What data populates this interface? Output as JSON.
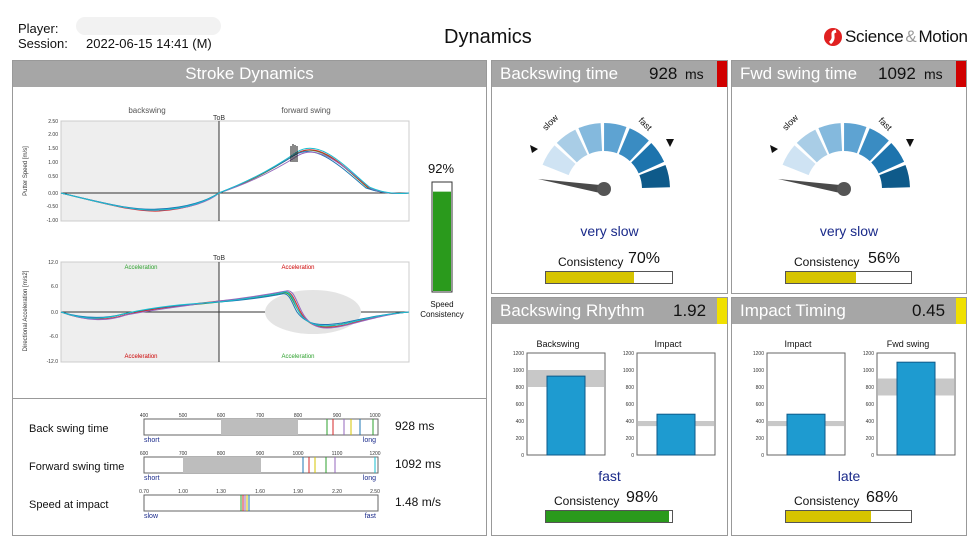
{
  "header": {
    "player_label": "Player:",
    "session_label": "Session:",
    "session_value": "2022-06-15 14:41 (M)",
    "page_title": "Dynamics",
    "brand_a": "Science",
    "brand_amp": "&",
    "brand_b": "Motion"
  },
  "stroke": {
    "title": "Stroke Dynamics",
    "backswing_label": "backswing",
    "forward_label": "forward swing",
    "tob": "ToB",
    "speed_ylabel": "Putter Speed [m/s]",
    "acc_ylabel": "Directional Acceleration [m/s2]",
    "speed_ticks": [
      "2.50",
      "2.00",
      "1.50",
      "1.00",
      "0.50",
      "0.00",
      "-0.50",
      "-1.00"
    ],
    "acc_ticks": [
      "12.0",
      "6.0",
      "0.0",
      "-6.0",
      "-12.0"
    ],
    "acceleration": "Acceleration",
    "consistency_pct": "92%",
    "consistency_fraction": 0.92,
    "consistency_line1": "Speed",
    "consistency_line2": "Consistency"
  },
  "ranges": [
    {
      "label": "Back swing time",
      "value": "928 ms",
      "ticks": [
        "400",
        "500",
        "600",
        "700",
        "800",
        "900",
        "1000"
      ],
      "low": "short",
      "high": "long"
    },
    {
      "label": "Forward swing time",
      "value": "1092 ms",
      "ticks": [
        "600",
        "700",
        "800",
        "900",
        "1000",
        "1100",
        "1200"
      ],
      "low": "short",
      "high": "long"
    },
    {
      "label": "Speed at impact",
      "value": "1.48 m/s",
      "ticks": [
        "0.70",
        "1.00",
        "1.30",
        "1.60",
        "1.90",
        "2.20",
        "2.50"
      ],
      "low": "slow",
      "high": "fast"
    }
  ],
  "backswing_time": {
    "title": "Backswing time",
    "value": "928",
    "unit": "ms",
    "flag_color": "#d00000",
    "slow": "slow",
    "fast": "fast",
    "verdict": "very slow",
    "consistency_label": "Consistency",
    "consistency": "70%",
    "consistency_fraction": 0.7,
    "bar_color": "#d6c400"
  },
  "fwd_swing_time": {
    "title": "Fwd swing time",
    "value": "1092",
    "unit": "ms",
    "flag_color": "#d00000",
    "slow": "slow",
    "fast": "fast",
    "verdict": "very slow",
    "consistency_label": "Consistency",
    "consistency": "56%",
    "consistency_fraction": 0.56,
    "bar_color": "#d6c400"
  },
  "backswing_rhythm": {
    "title": "Backswing Rhythm",
    "value": "1.92",
    "flag_color": "#f0e000",
    "bar1": "Backswing",
    "bar2": "Impact",
    "ticks": [
      "1200",
      "1000",
      "800",
      "600",
      "400",
      "200",
      "0"
    ],
    "bar1_value": 928,
    "bar2_value": 480,
    "verdict": "fast",
    "consistency_label": "Consistency",
    "consistency": "98%",
    "consistency_fraction": 0.98,
    "bar_color": "#2a9a1c"
  },
  "impact_timing": {
    "title": "Impact Timing",
    "value": "0.45",
    "flag_color": "#f0e000",
    "bar1": "Impact",
    "bar2": "Fwd swing",
    "ticks": [
      "1200",
      "1000",
      "800",
      "600",
      "400",
      "200",
      "0"
    ],
    "bar1_value": 480,
    "bar2_value": 1092,
    "verdict": "late",
    "consistency_label": "Consistency",
    "consistency": "68%",
    "consistency_fraction": 0.68,
    "bar_color": "#d6c400"
  },
  "colors": {
    "gauge_dark": "#0e5a8a",
    "gauge_light": "#a9cde6",
    "bar_blue": "#1e9bd0",
    "verdict_text": "#1a2a8a"
  }
}
